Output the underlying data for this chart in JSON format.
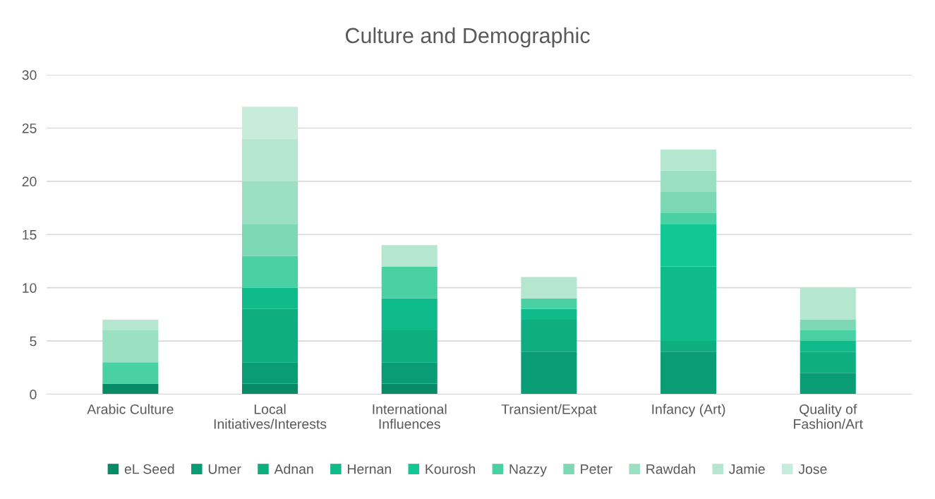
{
  "chart_data": {
    "type": "bar",
    "title": "Culture and Demographic",
    "stacked": true,
    "categories": [
      "Arabic Culture",
      "Local Initiatives/Interests",
      "International Influences",
      "Transient/Expat",
      "Infancy (Art)",
      "Quality of Fashion/Art"
    ],
    "series": [
      {
        "name": "eL Seed",
        "color": "#078a66",
        "values": [
          1,
          1,
          1,
          null,
          null,
          null
        ]
      },
      {
        "name": "Umer",
        "color": "#0a9c74",
        "values": [
          null,
          2,
          2,
          4,
          4,
          2
        ]
      },
      {
        "name": "Adnan",
        "color": "#0fae80",
        "values": [
          null,
          5,
          3,
          3,
          1,
          2
        ]
      },
      {
        "name": "Hernan",
        "color": "#0fbb8a",
        "values": [
          null,
          2,
          3,
          1,
          7,
          1
        ]
      },
      {
        "name": "Kourosh",
        "color": "#12c794",
        "values": [
          null,
          null,
          null,
          null,
          4,
          null
        ]
      },
      {
        "name": "Nazzy",
        "color": "#4ad1a3",
        "values": [
          2,
          3,
          3,
          1,
          1,
          1
        ]
      },
      {
        "name": "Peter",
        "color": "#7dd9b5",
        "values": [
          null,
          3,
          null,
          null,
          2,
          1
        ]
      },
      {
        "name": "Rawdah",
        "color": "#9be0c3",
        "values": [
          3,
          4,
          null,
          null,
          2,
          null
        ]
      },
      {
        "name": "Jamie",
        "color": "#b4e6d0",
        "values": [
          1,
          4,
          2,
          2,
          2,
          3
        ]
      },
      {
        "name": "Jose",
        "color": "#c8ecdc",
        "values": [
          null,
          3,
          null,
          null,
          null,
          null
        ]
      }
    ],
    "ylim": [
      0,
      30
    ],
    "yticks": [
      0,
      5,
      10,
      15,
      20,
      25,
      30
    ],
    "grid": "y",
    "legend": "bottom"
  }
}
